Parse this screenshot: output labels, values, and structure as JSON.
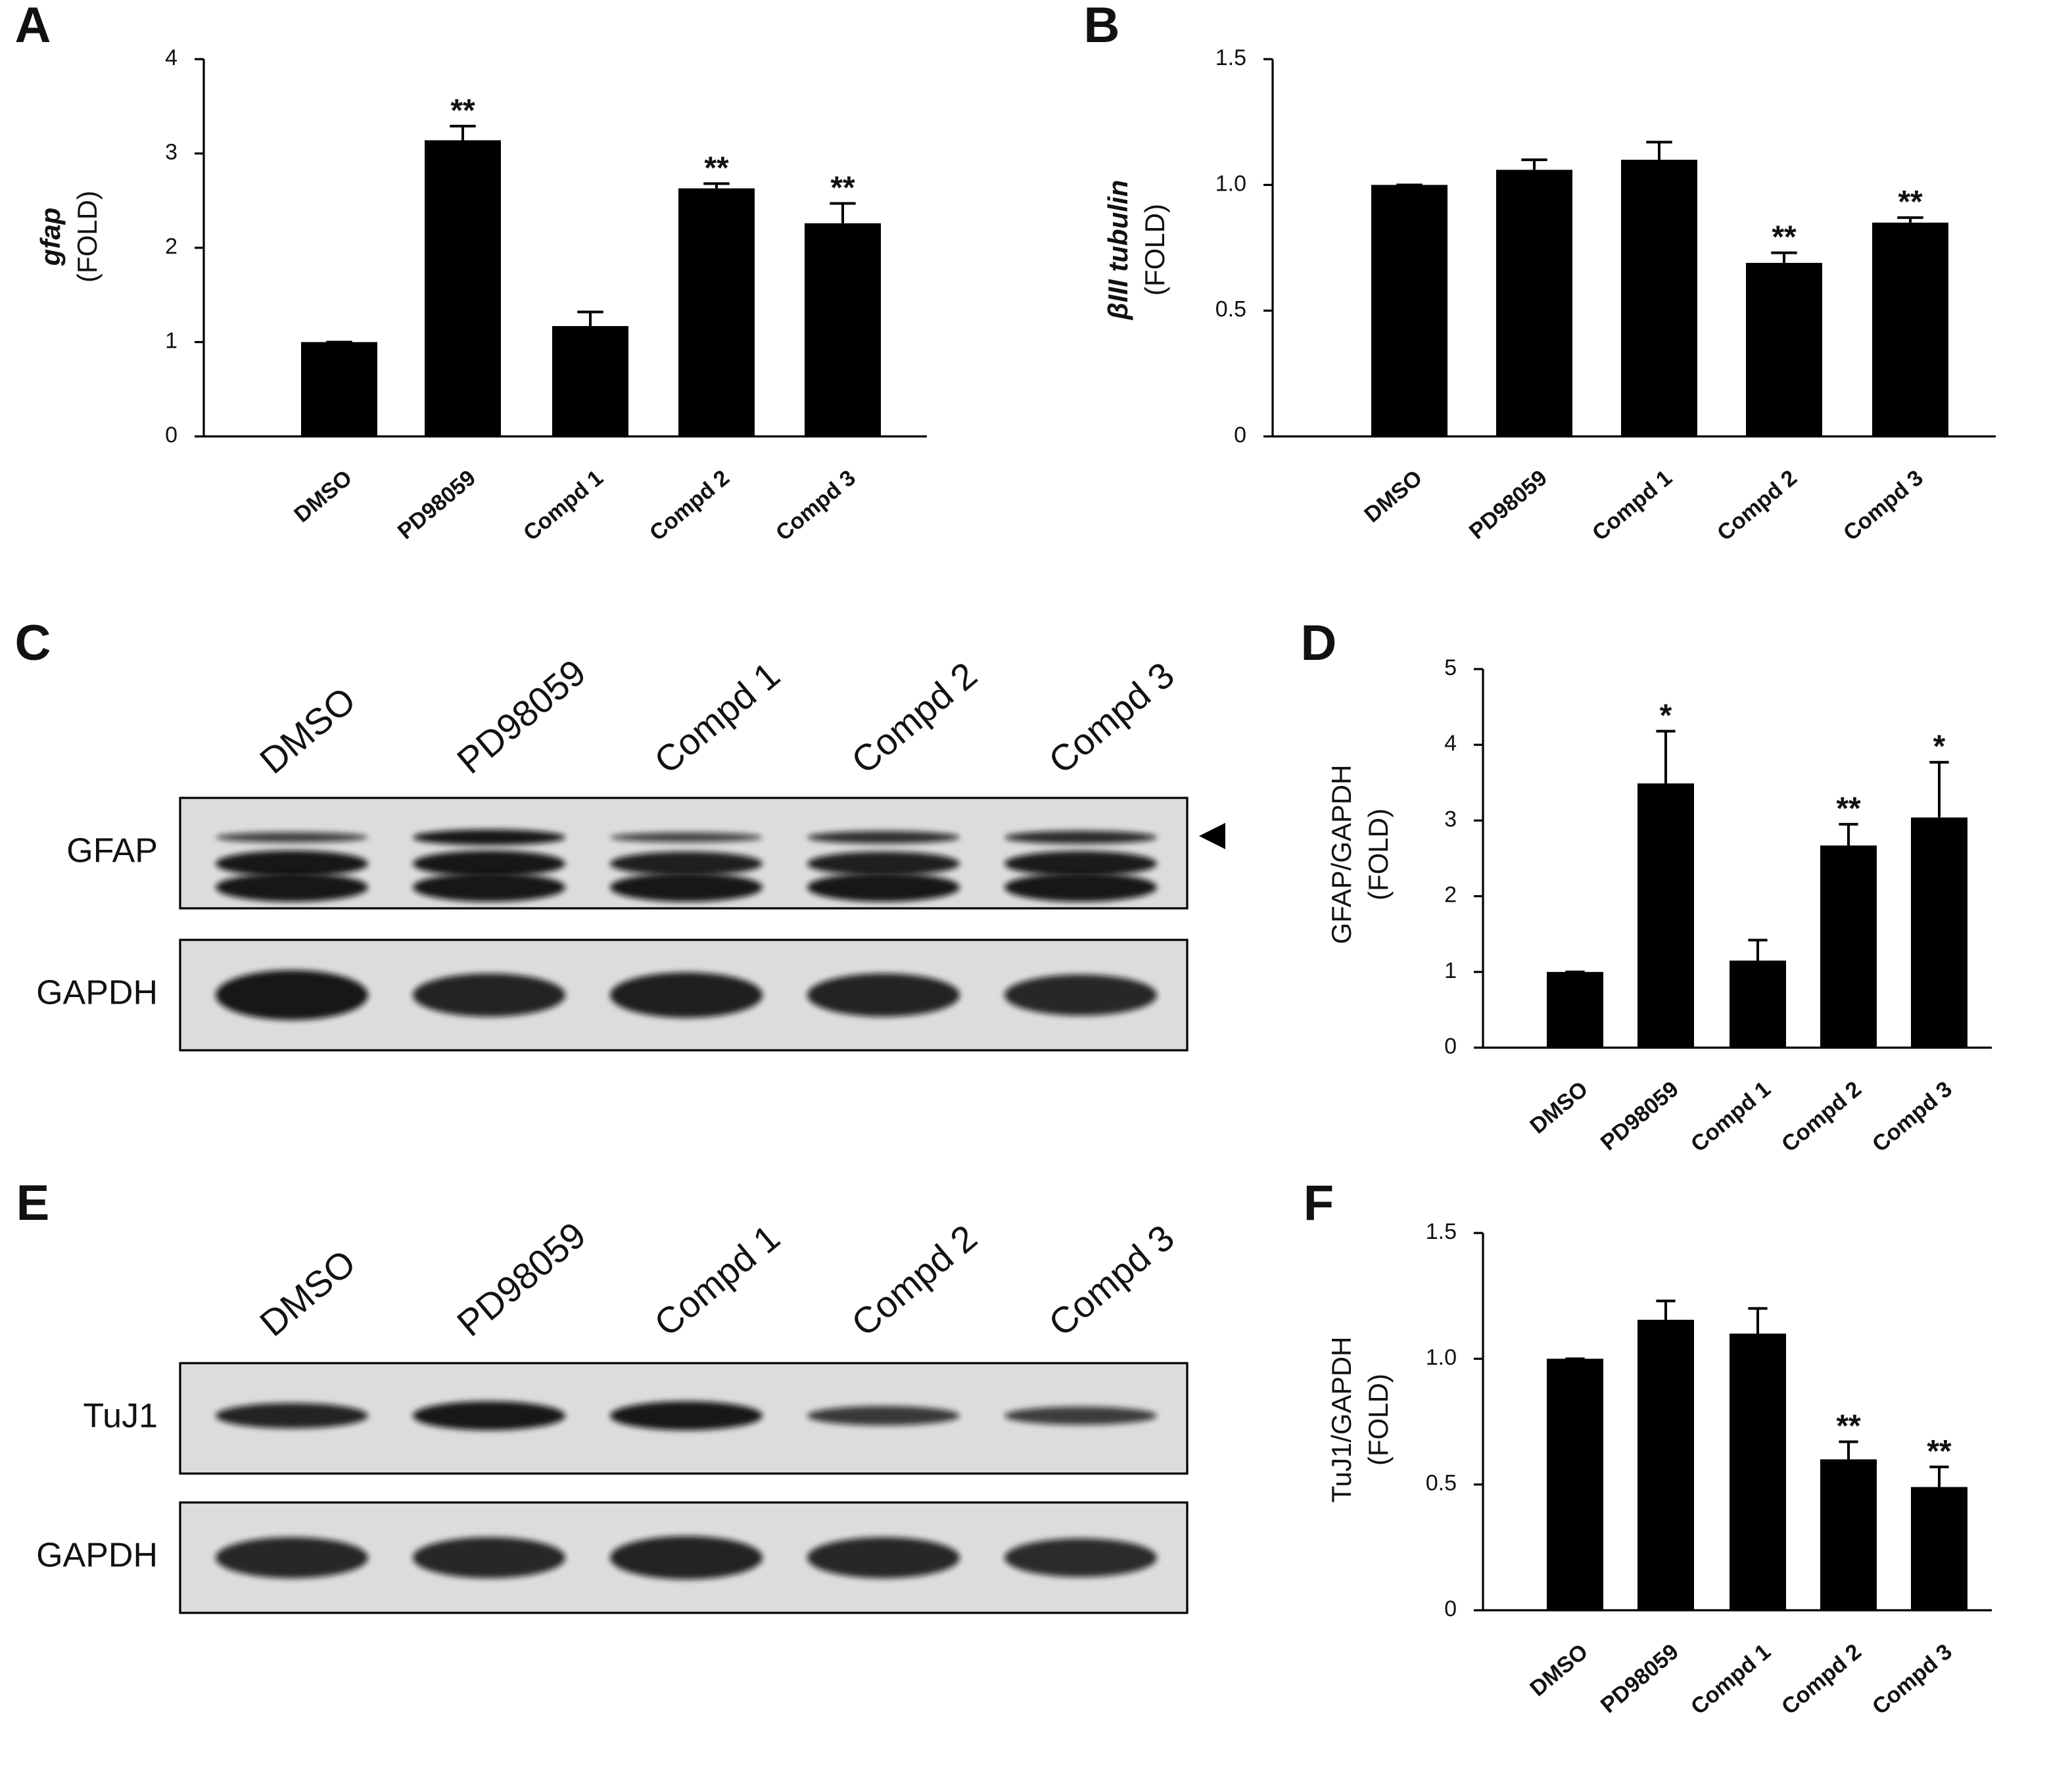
{
  "chart_data": [
    {
      "type": "bar",
      "panel": "A",
      "ylabel": [
        "gfap",
        "(FOLD)"
      ],
      "categories": [
        "DMSO",
        "PD98059",
        "Compd 1",
        "Compd 2",
        "Compd 3"
      ],
      "values": [
        1,
        3.14,
        1.17,
        2.63,
        2.26
      ],
      "errors": [
        0,
        0.15,
        0.15,
        0.05,
        0.21
      ],
      "annotations": [
        null,
        "**",
        null,
        "**",
        "**"
      ],
      "color": "#000000",
      "ylim": [
        0,
        4
      ],
      "yticks": [
        0,
        1,
        2,
        3,
        4
      ]
    },
    {
      "type": "bar",
      "panel": "B",
      "ylabel": [
        "βIII tubulin",
        "(FOLD)"
      ],
      "categories": [
        "DMSO",
        "PD98059",
        "Compd 1",
        "Compd 2",
        "Compd 3"
      ],
      "values": [
        1,
        1.06,
        1.1,
        0.69,
        0.85
      ],
      "errors": [
        0,
        0.04,
        0.07,
        0.04,
        0.02
      ],
      "annotations": [
        null,
        null,
        null,
        "**",
        "**"
      ],
      "color": "#000000",
      "ylim": [
        0,
        1.5
      ],
      "yticks": [
        0,
        0.5,
        {
          "value": 1,
          "label": "1.0"
        },
        1.5
      ]
    },
    {
      "type": "bar",
      "panel": "D",
      "ylabel": [
        "GFAP/GAPDH",
        "(FOLD)"
      ],
      "categories": [
        "DMSO",
        "PD98059",
        "Compd 1",
        "Compd 2",
        "Compd 3"
      ],
      "values": [
        1,
        3.49,
        1.15,
        2.67,
        3.04
      ],
      "errors": [
        0,
        0.69,
        0.27,
        0.28,
        0.73
      ],
      "annotations": [
        null,
        "*",
        null,
        "**",
        "*"
      ],
      "color": "#000000",
      "ylim": [
        0,
        5
      ],
      "yticks": [
        0,
        1,
        2,
        3,
        4,
        5
      ]
    },
    {
      "type": "bar",
      "panel": "F",
      "ylabel": [
        "TuJ1/GAPDH",
        "(FOLD)"
      ],
      "categories": [
        "DMSO",
        "PD98059",
        "Compd 1",
        "Compd 2",
        "Compd 3"
      ],
      "values": [
        1,
        1.155,
        1.1,
        0.6,
        0.49
      ],
      "errors": [
        0,
        0.075,
        0.1,
        0.07,
        0.08
      ],
      "annotations": [
        null,
        null,
        null,
        "**",
        "**"
      ],
      "color": "#000000",
      "ylim": [
        0,
        1.5
      ],
      "yticks": [
        0,
        0.5,
        {
          "value": 1,
          "label": "1.0"
        },
        1.5
      ]
    }
  ],
  "blots": [
    {
      "panel": "C",
      "lanes": [
        "DMSO",
        "PD98059",
        "Compd 1",
        "Compd 2",
        "Compd 3"
      ],
      "rows": [
        "GFAP",
        "GAPDH"
      ]
    },
    {
      "panel": "E",
      "lanes": [
        "DMSO",
        "PD98059",
        "Compd 1",
        "Compd 2",
        "Compd 3"
      ],
      "rows": [
        "TuJ1",
        "GAPDH"
      ]
    }
  ]
}
